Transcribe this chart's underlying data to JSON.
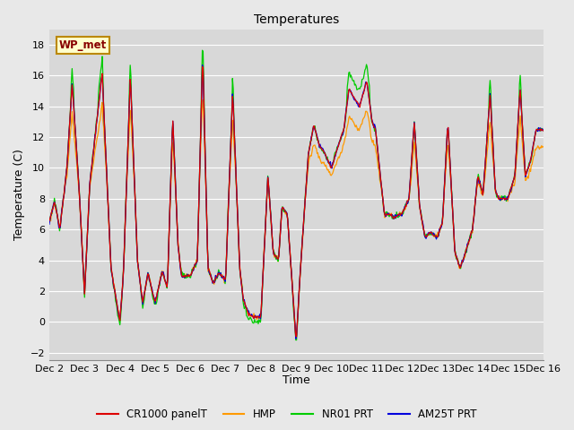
{
  "title": "Temperatures",
  "xlabel": "Time",
  "ylabel": "Temperature (C)",
  "ylim": [
    -2.5,
    19
  ],
  "yticks": [
    -2,
    0,
    2,
    4,
    6,
    8,
    10,
    12,
    14,
    16,
    18
  ],
  "xtick_labels": [
    "Dec 2",
    "Dec 3",
    "Dec 4",
    "Dec 5",
    "Dec 6",
    "Dec 7",
    "Dec 8",
    "Dec 9",
    "Dec 10",
    "Dec 11",
    "Dec 12",
    "Dec 13",
    "Dec 14",
    "Dec 15",
    "Dec 16"
  ],
  "legend_labels": [
    "CR1000 panelT",
    "HMP",
    "NR01 PRT",
    "AM25T PRT"
  ],
  "legend_colors": [
    "#dd0000",
    "#ff9900",
    "#00cc00",
    "#0000dd"
  ],
  "station_label": "WP_met",
  "background_color": "#e8e8e8",
  "plot_bg_color": "#d8d8d8",
  "cr1000_color": "#dd0000",
  "hmp_color": "#ff9900",
  "nro1_color": "#00cc00",
  "am25t_color": "#0000dd",
  "linewidth": 0.9,
  "title_fontsize": 10,
  "axis_fontsize": 9,
  "tick_fontsize": 8,
  "legend_fontsize": 8.5
}
